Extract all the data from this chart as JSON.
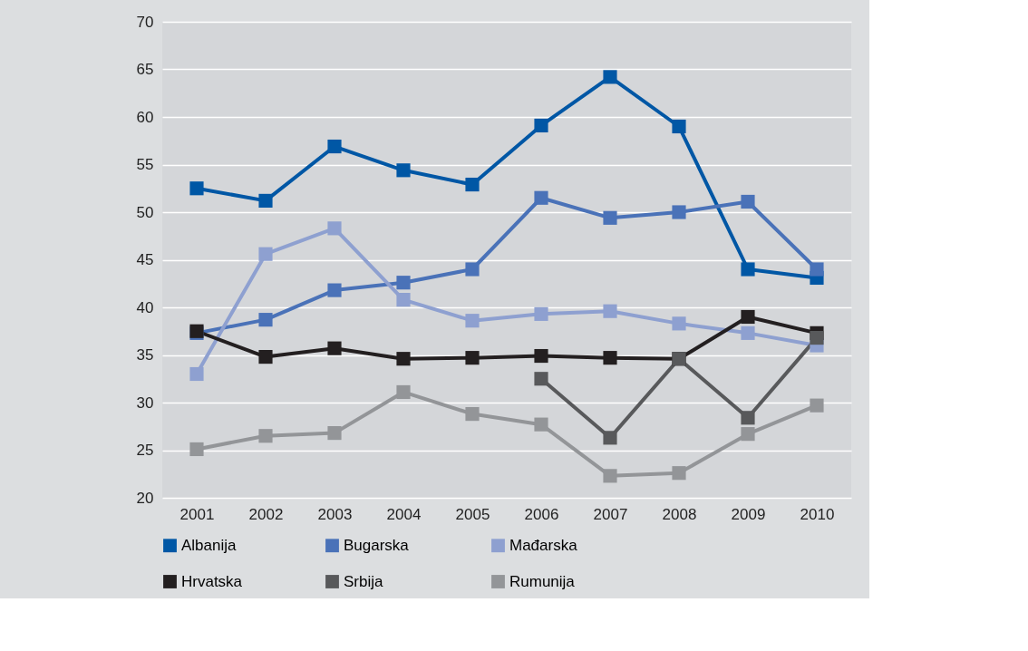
{
  "chart_data": {
    "type": "line",
    "categories": [
      "2001",
      "2002",
      "2003",
      "2004",
      "2005",
      "2006",
      "2007",
      "2008",
      "2009",
      "2010"
    ],
    "series": [
      {
        "name": "Albanija",
        "color": "#0057a5",
        "values": [
          52.5,
          51.2,
          56.9,
          54.4,
          52.9,
          59.1,
          64.2,
          59.0,
          44.0,
          43.1
        ]
      },
      {
        "name": "Bugarska",
        "color": "#4a72b8",
        "values": [
          37.3,
          38.7,
          41.8,
          42.6,
          44.0,
          51.5,
          49.4,
          50.0,
          51.1,
          44.0
        ]
      },
      {
        "name": "Mađarska",
        "color": "#8ea0d0",
        "values": [
          33.0,
          45.6,
          48.3,
          40.8,
          38.6,
          39.3,
          39.6,
          38.3,
          37.3,
          36.0
        ]
      },
      {
        "name": "Hrvatska",
        "color": "#231f20",
        "values": [
          37.5,
          34.8,
          35.7,
          34.6,
          34.7,
          34.9,
          34.7,
          34.6,
          39.0,
          37.3
        ]
      },
      {
        "name": "Srbija",
        "color": "#58595b",
        "values": [
          null,
          null,
          null,
          null,
          null,
          32.5,
          26.3,
          34.6,
          28.4,
          36.8
        ]
      },
      {
        "name": "Rumunija",
        "color": "#939598",
        "values": [
          25.1,
          26.5,
          26.8,
          31.1,
          28.8,
          27.7,
          22.3,
          22.6,
          26.7,
          29.7
        ]
      }
    ],
    "ylim": [
      20,
      70
    ],
    "yticks": [
      20,
      25,
      30,
      35,
      40,
      45,
      50,
      55,
      60,
      65,
      70
    ],
    "grid": "y",
    "legend": "bottom",
    "marker": "square",
    "line_style": "solid"
  }
}
